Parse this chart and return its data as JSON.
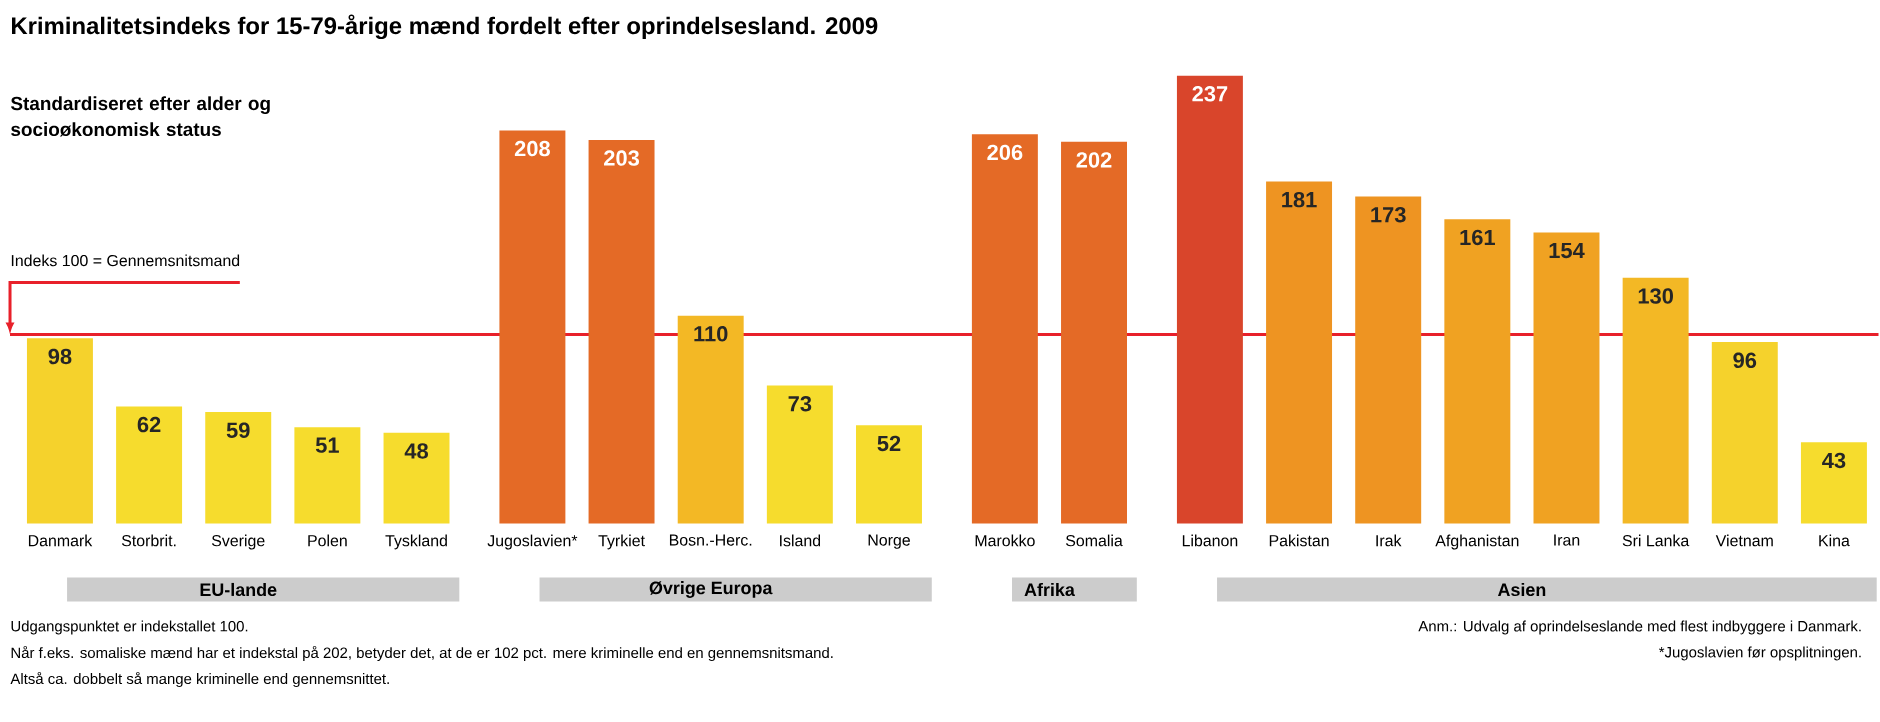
{
  "chart_data": {
    "type": "bar",
    "title": "Kriminalitetsindeks for 15-79-årige mænd fordelt efter oprindelsesland. 2009",
    "subtitle": "Standardiseret efter alder og socioøkonomisk status",
    "categories": [
      "Danmark",
      "Storbrit.",
      "Sverige",
      "Polen",
      "Tyskland",
      null,
      "Jugoslavien*",
      "Tyrkiet",
      "Bosn.-Herc.",
      "Island",
      "Norge",
      null,
      "Marokko",
      "Somalia",
      null,
      "Libanon",
      "Pakistan",
      "Irak",
      "Afghanistan",
      "Iran",
      "Sri Lanka",
      "Vietnam",
      "Kina"
    ],
    "values": [
      98,
      62,
      59,
      51,
      48,
      null,
      208,
      203,
      110,
      73,
      52,
      null,
      206,
      202,
      null,
      237,
      181,
      173,
      161,
      154,
      130,
      96,
      43
    ],
    "colors": [
      "#f5d22c",
      "#f6dc2d",
      "#f6dc2d",
      "#f6dc2d",
      "#f6dc2d",
      null,
      "#e46a26",
      "#e46a26",
      "#f3b825",
      "#f6dc2d",
      "#f6dc2d",
      null,
      "#e46a26",
      "#e46a26",
      null,
      "#d9452b",
      "#ee9422",
      "#ee9422",
      "#f0a222",
      "#f0a222",
      "#f3b825",
      "#f5d22c",
      "#f6dc2d"
    ],
    "data_labels": true,
    "tick_labels": "x",
    "ref_lines": [
      {
        "axis": "y",
        "value": 100,
        "label": "Indeks 100 = Gennemsnitsmand",
        "color": "#e8202a"
      }
    ],
    "annotations": [
      "EU-lande",
      "Øvrige Europa",
      "Afrika",
      "Asien",
      "Udgangspunktet er indekstallet 100.",
      "Når f.eks. somaliske mænd har et indekstal på 202, betyder det, at de er 102 pct. mere kriminelle end en gennemsnitsmand.",
      "Altså ca. dobbelt så mange kriminelle end gennemsnittet.",
      "Anm.: Udvalg af oprindelseslande med flest indbyggere i Danmark.",
      "*Jugoslavien før opsplitningen."
    ]
  }
}
